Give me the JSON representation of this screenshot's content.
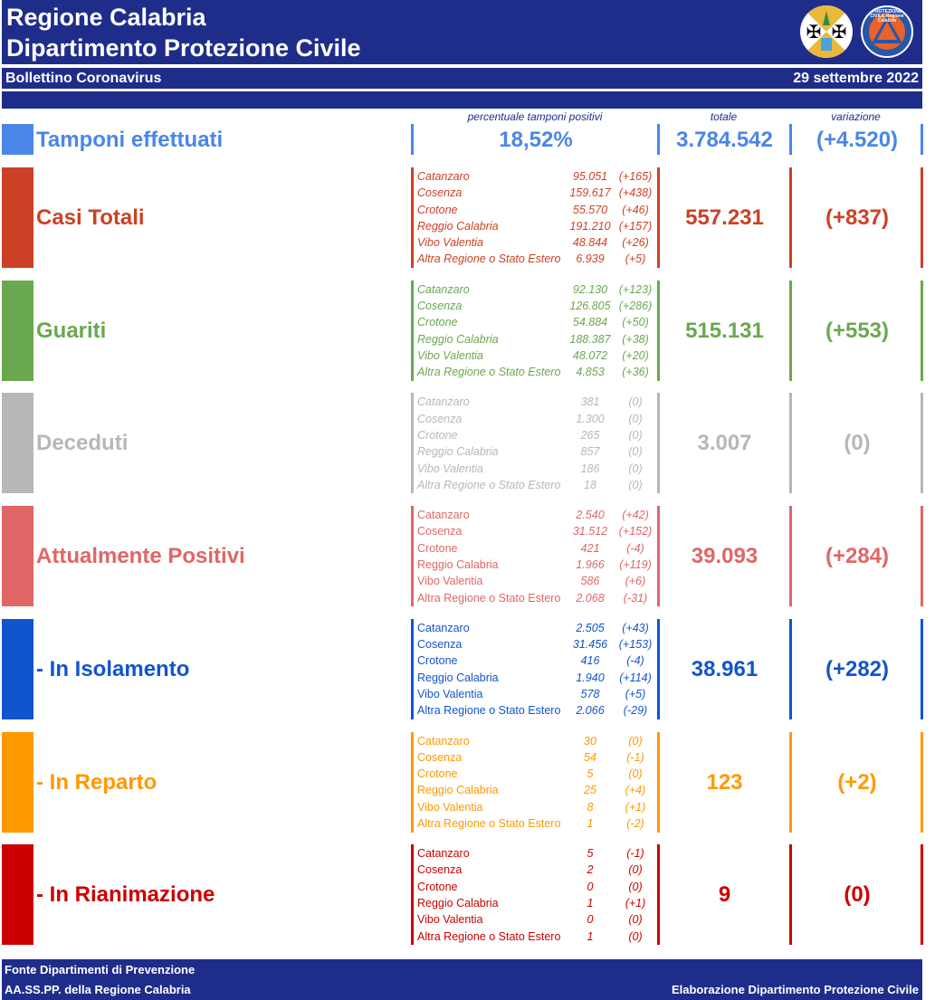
{
  "header": {
    "title_line1": "Regione Calabria",
    "title_line2": "Dipartimento Protezione Civile",
    "subtitle": "Bollettino Coronavirus",
    "date": "29 settembre 2022",
    "logo1": "Regione Calabria coat of arms",
    "logo2": "PROTEZIONE CIVILE Regione Calabria"
  },
  "columns": {
    "percent": "percentuale tamponi positivi",
    "total": "totale",
    "variation": "variazione"
  },
  "tamponi": {
    "label": "Tamponi effettuati",
    "percent": "18,52%",
    "total": "3.784.542",
    "variation": "(+4.520)",
    "color": "#4a86e8"
  },
  "groups": [
    {
      "label": "Casi Totali",
      "color": "#cc4125",
      "italic_names": true,
      "total": "557.231",
      "variation": "(+837)",
      "rows": [
        [
          "Catanzaro",
          "95.051",
          "(+165)"
        ],
        [
          "Cosenza",
          "159.617",
          "(+438)"
        ],
        [
          "Crotone",
          "55.570",
          "(+46)"
        ],
        [
          "Reggio Calabria",
          "191.210",
          "(+157)"
        ],
        [
          "Vibo Valentia",
          "48.844",
          "(+26)"
        ],
        [
          "Altra Regione o Stato Estero",
          "6.939",
          "(+5)"
        ]
      ]
    },
    {
      "label": "Guariti",
      "color": "#6aa84f",
      "italic_names": true,
      "total": "515.131",
      "variation": "(+553)",
      "rows": [
        [
          "Catanzaro",
          "92.130",
          "(+123)"
        ],
        [
          "Cosenza",
          "126.805",
          "(+286)"
        ],
        [
          "Crotone",
          "54.884",
          "(+50)"
        ],
        [
          "Reggio Calabria",
          "188.387",
          "(+38)"
        ],
        [
          "Vibo Valentia",
          "48.072",
          "(+20)"
        ],
        [
          "Altra Regione o Stato Estero",
          "4.853",
          "(+36)"
        ]
      ]
    },
    {
      "label": "Deceduti",
      "color": "#b7b7b7",
      "italic_names": true,
      "total": "3.007",
      "variation": "(0)",
      "rows": [
        [
          "Catanzaro",
          "381",
          "(0)"
        ],
        [
          "Cosenza",
          "1.300",
          "(0)"
        ],
        [
          "Crotone",
          "265",
          "(0)"
        ],
        [
          "Reggio Calabria",
          "857",
          "(0)"
        ],
        [
          "Vibo Valentia",
          "186",
          "(0)"
        ],
        [
          "Altra Regione o Stato Estero",
          "18",
          "(0)"
        ]
      ]
    },
    {
      "label": "Attualmente Positivi",
      "color": "#e06666",
      "italic_names": false,
      "total": "39.093",
      "variation": "(+284)",
      "rows": [
        [
          "Catanzaro",
          "2.540",
          "(+42)"
        ],
        [
          "Cosenza",
          "31.512",
          "(+152)"
        ],
        [
          "Crotone",
          "421",
          "(-4)"
        ],
        [
          "Reggio Calabria",
          "1.966",
          "(+119)"
        ],
        [
          "Vibo Valentia",
          "586",
          "(+6)"
        ],
        [
          "Altra Regione o Stato Estero",
          "2.068",
          "(-31)"
        ]
      ]
    },
    {
      "label": " - In Isolamento",
      "color": "#1155cc",
      "italic_names": false,
      "total": "38.961",
      "variation": "(+282)",
      "rows": [
        [
          "Catanzaro",
          "2.505",
          "(+43)"
        ],
        [
          "Cosenza",
          "31.456",
          "(+153)"
        ],
        [
          "Crotone",
          "416",
          "(-4)"
        ],
        [
          "Reggio Calabria",
          "1.940",
          "(+114)"
        ],
        [
          "Vibo Valentia",
          "578",
          "(+5)"
        ],
        [
          "Altra Regione o Stato Estero",
          "2.066",
          "(-29)"
        ]
      ]
    },
    {
      "label": " - In Reparto",
      "color": "#ff9900",
      "italic_names": false,
      "total": "123",
      "variation": "(+2)",
      "rows": [
        [
          "Catanzaro",
          "30",
          "(0)"
        ],
        [
          "Cosenza",
          "54",
          "(-1)"
        ],
        [
          "Crotone",
          "5",
          "(0)"
        ],
        [
          "Reggio Calabria",
          "25",
          "(+4)"
        ],
        [
          "Vibo Valentia",
          "8",
          "(+1)"
        ],
        [
          "Altra Regione o Stato Estero",
          "1",
          "(-2)"
        ]
      ]
    },
    {
      "label": " - In Rianimazione",
      "color": "#cc0000",
      "italic_names": false,
      "total": "9",
      "variation": "(0)",
      "rows": [
        [
          "Catanzaro",
          "5",
          "(-1)"
        ],
        [
          "Cosenza",
          "2",
          "(0)"
        ],
        [
          "Crotone",
          "0",
          "(0)"
        ],
        [
          "Reggio Calabria",
          "1",
          "(+1)"
        ],
        [
          "Vibo Valentia",
          "0",
          "(0)"
        ],
        [
          "Altra Regione o Stato Estero",
          "1",
          "(0)"
        ]
      ]
    }
  ],
  "footer": {
    "source_line1": "Fonte Dipartimenti di Prevenzione",
    "source_line2": "AA.SS.PP.  della Regione Calabria",
    "credit": "Elaborazione Dipartimento Protezione Civile"
  }
}
